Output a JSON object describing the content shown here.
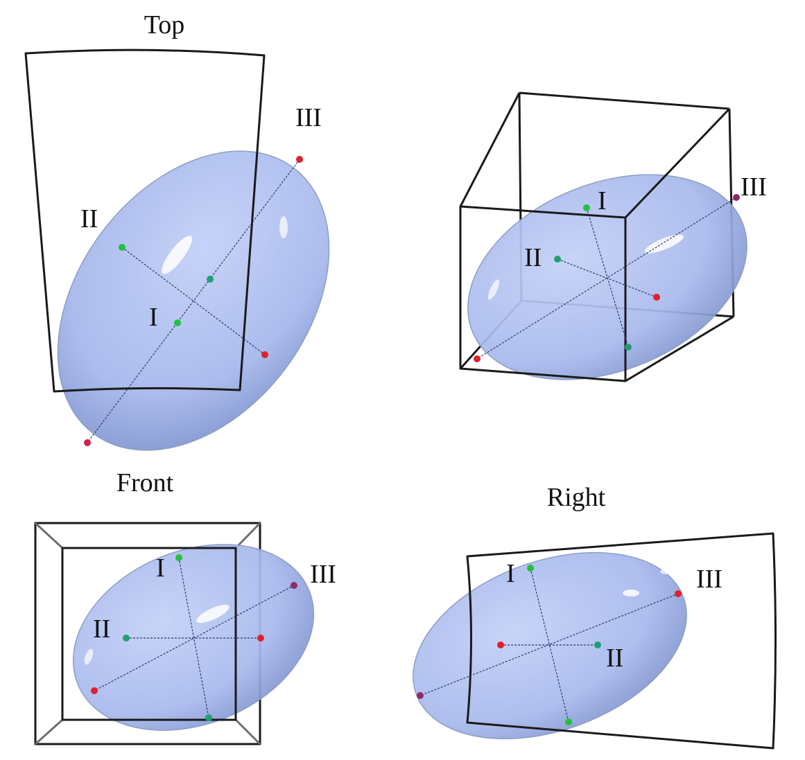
{
  "colors": {
    "ellipsoid_fill": "#a9bbee",
    "ellipsoid_shadow": "#7f94d2",
    "point_red": "#e0202a",
    "point_green": "#22c040",
    "point_teal": "#1fa070",
    "point_purple": "#8e2a6a",
    "frame": "#1a1a1a"
  },
  "views": [
    {
      "id": "top",
      "title": "Top",
      "labels": {
        "I": "I",
        "II": "II",
        "III": "III"
      }
    },
    {
      "id": "perspective",
      "title": "",
      "labels": {
        "I": "I",
        "II": "II",
        "III": "III"
      }
    },
    {
      "id": "front",
      "title": "Front",
      "labels": {
        "I": "I",
        "II": "II",
        "III": "III"
      }
    },
    {
      "id": "right",
      "title": "Right",
      "labels": {
        "I": "I",
        "II": "II",
        "III": "III"
      }
    }
  ]
}
